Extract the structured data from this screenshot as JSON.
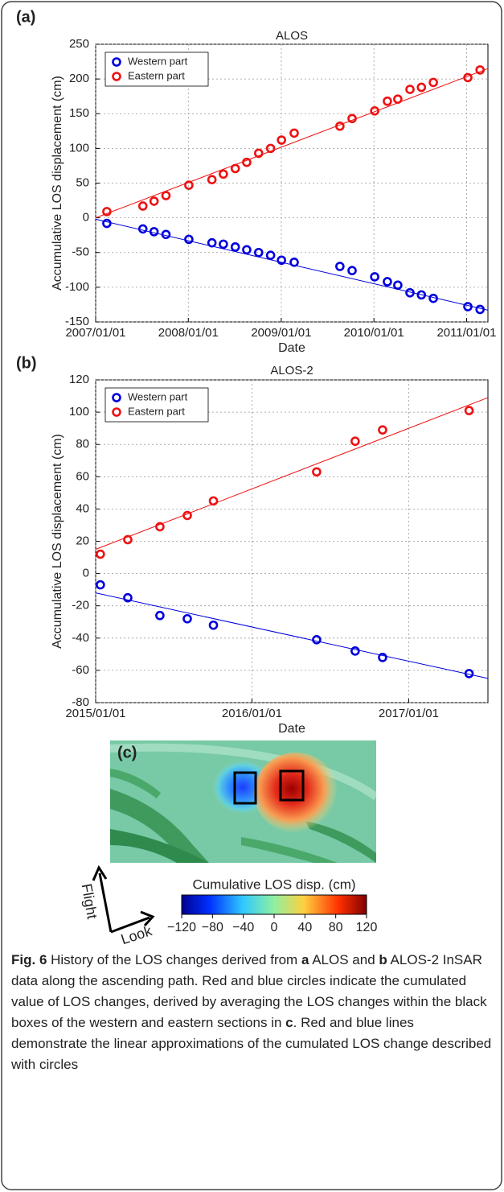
{
  "chart_data": [
    {
      "type": "scatter",
      "panel_label": "(a)",
      "title": "ALOS",
      "x_label": "Date",
      "y_label": "Accumulative LOS displacement (cm)",
      "x": [
        "2007/02/14",
        "2007/07/06",
        "2007/08/19",
        "2007/10/05",
        "2008/01/03",
        "2008/04/03",
        "2008/05/18",
        "2008/07/04",
        "2008/08/18",
        "2008/10/04",
        "2008/11/20",
        "2009/01/02",
        "2009/02/21",
        "2009/08/20",
        "2009/10/07",
        "2010/01/04",
        "2010/02/23",
        "2010/04/05",
        "2010/05/23",
        "2010/07/07",
        "2010/08/23",
        "2011/01/06",
        "2011/02/23"
      ],
      "series": [
        {
          "name": "Western part",
          "color": "#0000dd",
          "values": [
            -8,
            -16,
            -20,
            -24,
            -31,
            -36,
            -38,
            -42,
            -46,
            -50,
            -54,
            -61,
            -64,
            -70,
            -76,
            -85,
            -92,
            -97,
            -108,
            -111,
            -116,
            -128,
            -132
          ],
          "fit": {
            "x": [
              "2007/01/01",
              "2011/03/26"
            ],
            "values": [
              -2,
              -133
            ]
          }
        },
        {
          "name": "Eastern part",
          "color": "#ee1111",
          "values": [
            9,
            17,
            24,
            32,
            47,
            55,
            63,
            71,
            80,
            93,
            100,
            112,
            122,
            132,
            143,
            154,
            168,
            171,
            185,
            188,
            195,
            202,
            213
          ],
          "fit": {
            "x": [
              "2007/01/01",
              "2011/03/26"
            ],
            "values": [
              0,
              215
            ]
          }
        }
      ],
      "xlim": [
        "2007/01/01",
        "2011/03/26"
      ],
      "xticks": [
        "2007/01/01",
        "2008/01/01",
        "2009/01/01",
        "2010/01/01",
        "2011/01/01"
      ],
      "ylim": [
        -150,
        250
      ],
      "yticks": [
        -150,
        -100,
        -50,
        0,
        50,
        100,
        150,
        200,
        250
      ],
      "grid": true,
      "legend": "upper left"
    },
    {
      "type": "scatter",
      "panel_label": "(b)",
      "title": "ALOS-2",
      "x_label": "Date",
      "y_label": "Accumulative LOS displacement (cm)",
      "x": [
        "2015/01/12",
        "2015/03/17",
        "2015/05/31",
        "2015/08/03",
        "2015/10/03",
        "2016/05/31",
        "2016/08/29",
        "2016/11/01",
        "2017/05/22"
      ],
      "series": [
        {
          "name": "Western part",
          "color": "#0000dd",
          "values": [
            -7,
            -15,
            -26,
            -28,
            -32,
            -41,
            -48,
            -52,
            -62
          ],
          "fit": {
            "x": [
              "2015/01/01",
              "2017/07/05"
            ],
            "values": [
              -12,
              -65
            ]
          }
        },
        {
          "name": "Eastern part",
          "color": "#ee1111",
          "values": [
            12,
            21,
            29,
            36,
            45,
            63,
            82,
            89,
            101
          ],
          "fit": {
            "x": [
              "2015/01/01",
              "2017/07/05"
            ],
            "values": [
              15,
              109
            ]
          }
        }
      ],
      "xlim": [
        "2015/01/01",
        "2017/07/05"
      ],
      "xticks": [
        "2015/01/01",
        "2016/01/01",
        "2017/01/01"
      ],
      "ylim": [
        -80,
        120
      ],
      "yticks": [
        -80,
        -60,
        -40,
        -20,
        0,
        20,
        40,
        60,
        80,
        100,
        120
      ],
      "grid": true,
      "legend": "upper left"
    }
  ],
  "panel_c": {
    "panel_label": "(c)",
    "flight": "Flight",
    "look": "Look",
    "colorbar_title": "Cumulative LOS disp. (cm)",
    "colorbar_lim": [
      -120,
      120
    ],
    "colorbar_ticks": [
      {
        "value": -120,
        "label": "−120"
      },
      {
        "value": -80,
        "label": "−80"
      },
      {
        "value": -40,
        "label": "−40"
      },
      0,
      40,
      80,
      120
    ]
  },
  "caption": {
    "label": "Fig. 6",
    "parts": [
      " History of the LOS changes derived from ",
      "a",
      " ALOS and ",
      "b",
      " ALOS-2 InSAR data along the ascending path. Red and blue circles indicate the cumulated value of LOS changes, derived by averaging the LOS changes within the black boxes of the western and eastern sections in ",
      "c",
      ". Red and blue lines demonstrate the linear approximations of the cumulated LOS change described with circles"
    ]
  }
}
